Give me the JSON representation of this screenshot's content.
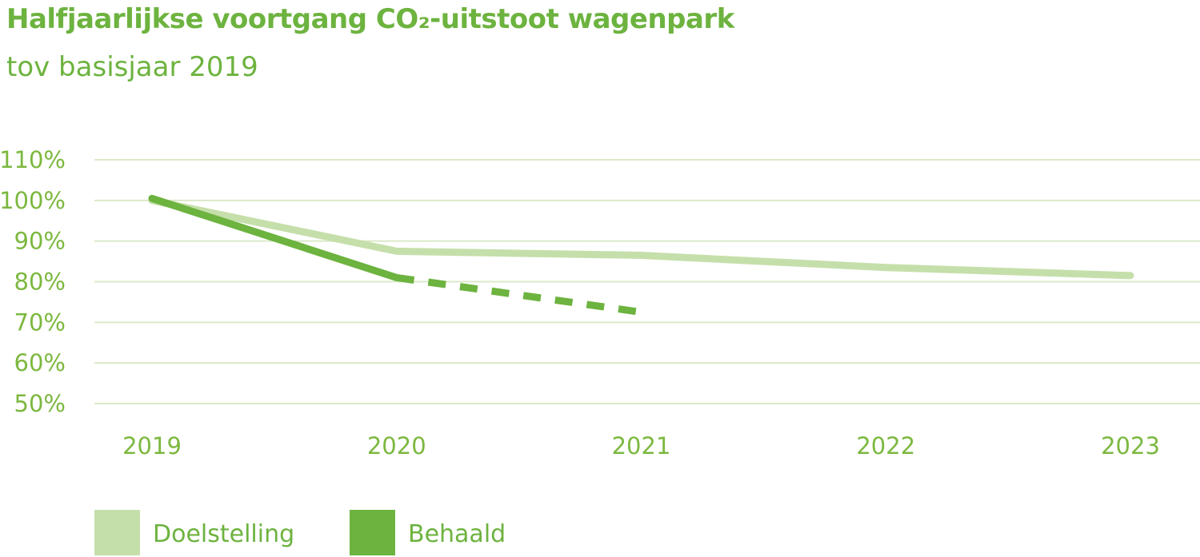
{
  "chart_data": {
    "type": "line",
    "title": "Halfjaarlijkse voortgang CO₂-uitstoot wagenpark",
    "subtitle": "tov basisjaar 2019",
    "xlabel": "",
    "ylabel": "",
    "categories": [
      "2019",
      "2020",
      "2021",
      "2022",
      "2023"
    ],
    "y_ticks": [
      "110%",
      "100%",
      "90%",
      "80%",
      "70%",
      "60%",
      "50%"
    ],
    "ylim": [
      50,
      110
    ],
    "grid": true,
    "legend_position": "bottom-left",
    "series": [
      {
        "name": "Doelstelling",
        "color": "#c5dfaa",
        "style": "solid",
        "points": [
          {
            "x": "2019",
            "y": 100
          },
          {
            "x": "2020",
            "y": 87.5
          },
          {
            "x": "2021",
            "y": 86.5
          },
          {
            "x": "2022",
            "y": 83.5
          },
          {
            "x": "2023",
            "y": 81.5
          }
        ]
      },
      {
        "name": "Behaald",
        "color": "#6db33f",
        "style": "solid",
        "points": [
          {
            "x": "2019",
            "y": 100.5
          },
          {
            "x": "2020",
            "y": 81
          }
        ]
      },
      {
        "name": "",
        "color": "#6db33f",
        "style": "dashed",
        "points": [
          {
            "x": "2020",
            "y": 81
          },
          {
            "x": "2021",
            "y": 72.5
          }
        ]
      }
    ]
  }
}
